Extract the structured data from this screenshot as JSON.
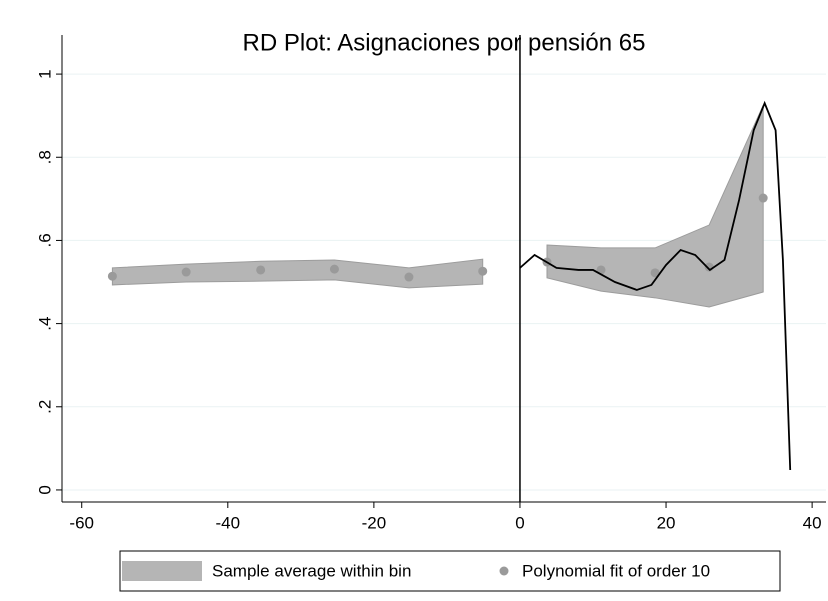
{
  "chart_data": {
    "type": "scatter",
    "title": "RD Plot: Asignaciones por pensión 65",
    "xlim": [
      -62.7,
      41.9
    ],
    "ylim": [
      -0.029,
      1.094
    ],
    "xticks": [
      -60,
      -40,
      -20,
      0,
      20,
      40
    ],
    "yticks": [
      0,
      {
        "value": 0.2,
        "label": ".2"
      },
      {
        "value": 0.4,
        "label": ".4"
      },
      {
        "value": 0.6,
        "label": ".6"
      },
      {
        "value": 0.8,
        "label": ".8"
      },
      1
    ],
    "grid": true,
    "xline": 0,
    "series": [
      {
        "name": "Sample average within bin",
        "type": "band",
        "color": "#b5b5b5",
        "x": [
          -55.8,
          -45.7,
          -35.5,
          -25.4,
          -15.2,
          -5.1,
          null,
          3.7,
          11.1,
          18.5,
          25.9,
          33.3
        ],
        "lower": [
          0.493,
          0.5,
          0.502,
          0.505,
          0.486,
          0.495,
          null,
          0.51,
          0.478,
          0.462,
          0.44,
          0.476
        ],
        "upper": [
          0.534,
          0.543,
          0.55,
          0.553,
          0.534,
          0.555,
          null,
          0.589,
          0.582,
          0.582,
          0.637,
          0.925
        ]
      },
      {
        "name": "Polynomial fit of order 10",
        "type": "scatter",
        "color": "#9a9a9a",
        "x": [
          -55.8,
          -45.7,
          -35.5,
          -25.4,
          -15.2,
          -5.1,
          3.7,
          11.1,
          18.5,
          25.9,
          33.3
        ],
        "values": [
          0.514,
          0.524,
          0.529,
          0.531,
          0.512,
          0.526,
          0.548,
          0.529,
          0.522,
          0.536,
          0.702
        ]
      },
      {
        "type": "line",
        "color": "#000000",
        "x": [
          0,
          2,
          5,
          8,
          10,
          13,
          16,
          18,
          20,
          22,
          24,
          26,
          28,
          30,
          32,
          33.5,
          35,
          36,
          37
        ],
        "values": [
          0.534,
          0.565,
          0.534,
          0.529,
          0.529,
          0.5,
          0.481,
          0.493,
          0.541,
          0.577,
          0.565,
          0.529,
          0.553,
          0.697,
          0.865,
          0.93,
          0.865,
          0.553,
          0.048
        ]
      }
    ]
  }
}
